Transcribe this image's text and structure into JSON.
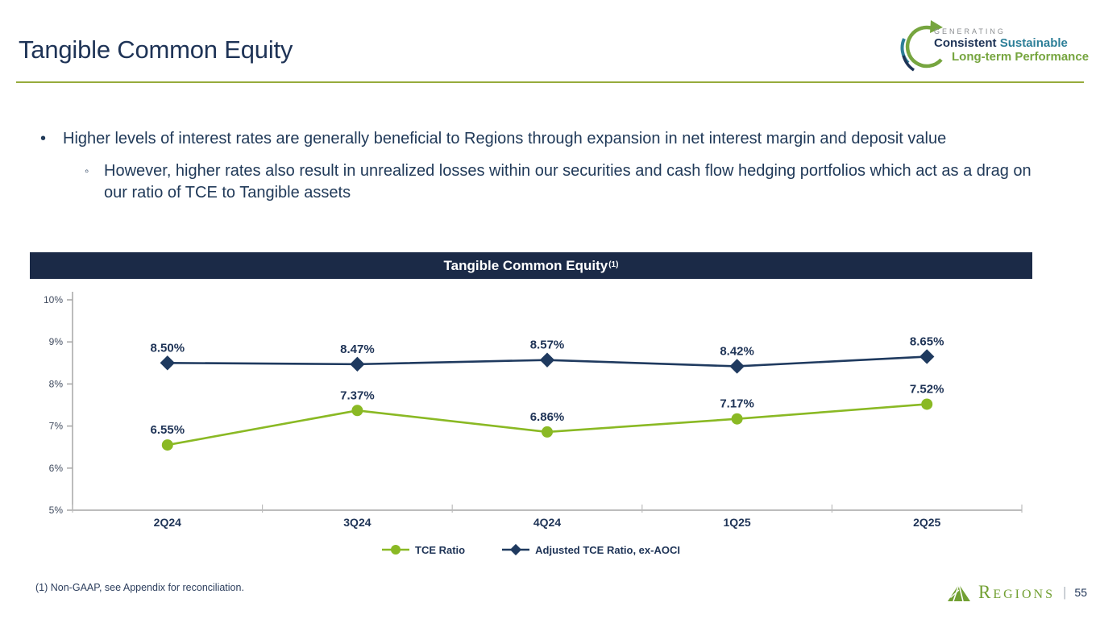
{
  "slide": {
    "title": "Tangible Common Equity",
    "footnote": "(1) Non-GAAP, see Appendix for reconciliation."
  },
  "brand_lockup": {
    "line1": "GENERATING",
    "line2_part1": "Consistent",
    "line2_part2": "Sustainable",
    "line3": "Long-term Performance"
  },
  "bullets": {
    "marker_main": "•",
    "marker_sub": "◦",
    "main": "Higher levels of interest rates are generally beneficial to Regions through expansion in net interest margin and deposit value",
    "sub": "However, higher rates also result in unrealized losses within our securities and cash flow hedging portfolios which act as a drag on our ratio of TCE to Tangible assets"
  },
  "chart_data": {
    "type": "line",
    "title": "Tangible Common Equity",
    "title_superscript": "(1)",
    "categories": [
      "2Q24",
      "3Q24",
      "4Q24",
      "1Q25",
      "2Q25"
    ],
    "series": [
      {
        "name": "TCE Ratio",
        "color": "#8ab924",
        "marker": "circle",
        "values": [
          6.55,
          7.37,
          6.86,
          7.17,
          7.52
        ],
        "data_labels": [
          "6.55%",
          "7.37%",
          "6.86%",
          "7.17%",
          "7.52%"
        ]
      },
      {
        "name": "Adjusted TCE Ratio, ex-AOCI",
        "color": "#1f3a5f",
        "marker": "diamond",
        "values": [
          8.5,
          8.47,
          8.57,
          8.42,
          8.65
        ],
        "data_labels": [
          "8.50%",
          "8.47%",
          "8.57%",
          "8.42%",
          "8.65%"
        ]
      }
    ],
    "ylim": [
      5,
      10
    ],
    "ytick_labels": [
      "5%",
      "6%",
      "7%",
      "8%",
      "9%",
      "10%"
    ],
    "grid": false,
    "legend_position": "bottom"
  },
  "footer": {
    "brand": "Regions",
    "separator": "|",
    "page": "55"
  },
  "colors": {
    "navy": "#1e3356",
    "header_bar": "#1b2a47",
    "green_line": "#8ab924",
    "divider_green": "#96ab3c",
    "axis_gray": "#a6a6a6",
    "teal": "#2d7f98",
    "regions_green": "#72a033"
  }
}
